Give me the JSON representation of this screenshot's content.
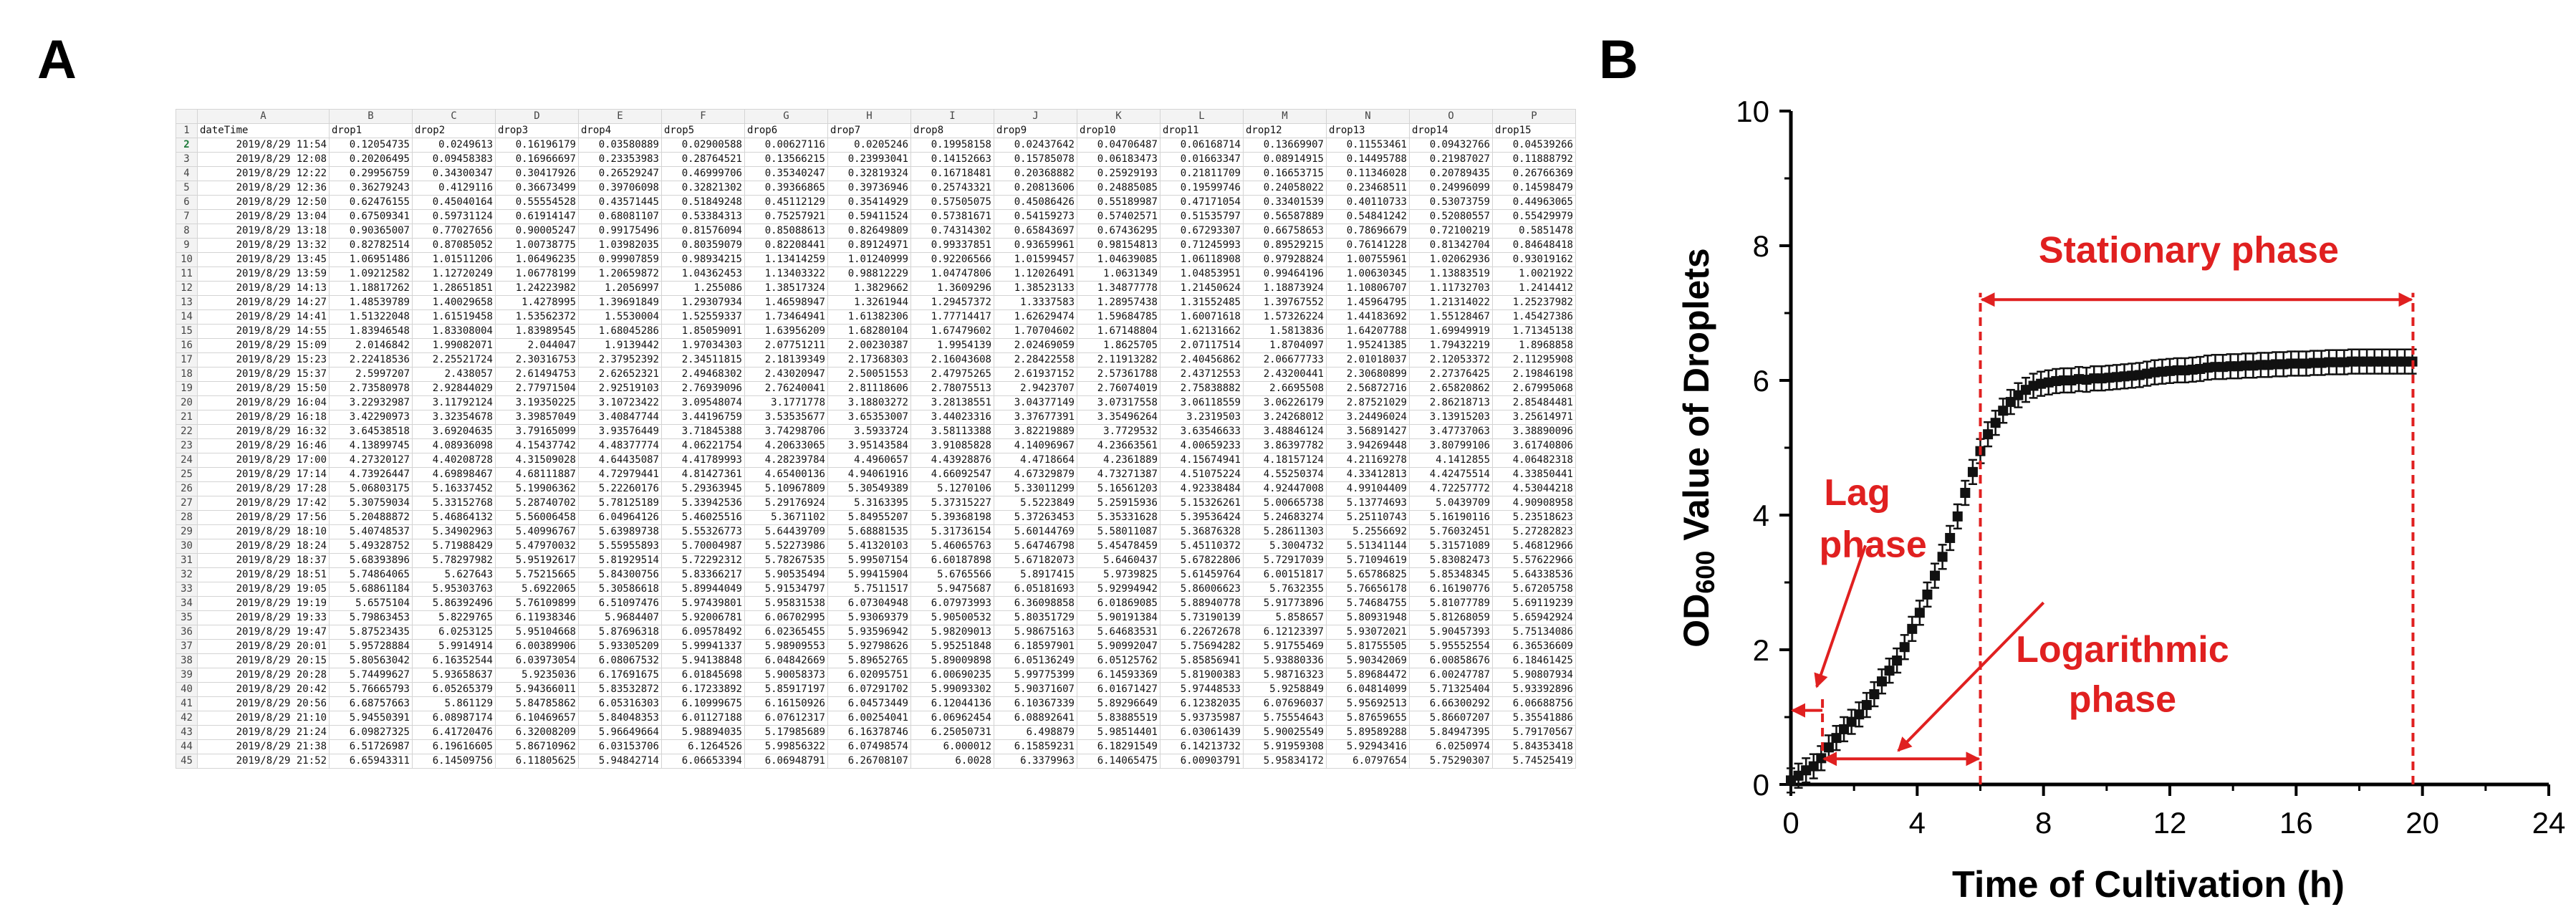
{
  "panels": {
    "a": "A",
    "b": "B"
  },
  "spreadsheet": {
    "columns": [
      "",
      "A",
      "B",
      "C",
      "D",
      "E",
      "F",
      "G",
      "H",
      "I",
      "J",
      "K",
      "L",
      "M",
      "N",
      "O",
      "P"
    ],
    "header": [
      "dateTime",
      "drop1",
      "drop2",
      "drop3",
      "drop4",
      "drop5",
      "drop6",
      "drop7",
      "drop8",
      "drop9",
      "drop10",
      "drop11",
      "drop12",
      "drop13",
      "drop14",
      "drop15"
    ],
    "rows": [
      [
        "2019/8/29 11:54",
        "0.12054735",
        "0.0249613",
        "0.16196179",
        "0.03580889",
        "0.02900588",
        "0.00627116",
        "0.0205246",
        "0.19958158",
        "0.02437642",
        "0.04706487",
        "0.06168714",
        "0.13669907",
        "0.11553461",
        "0.09432766",
        "0.04539266"
      ],
      [
        "2019/8/29 12:08",
        "0.20206495",
        "0.09458383",
        "0.16966697",
        "0.23353983",
        "0.28764521",
        "0.13566215",
        "0.23993041",
        "0.14152663",
        "0.15785078",
        "0.06183473",
        "0.01663347",
        "0.08914915",
        "0.14495788",
        "0.21987027",
        "0.11888792"
      ],
      [
        "2019/8/29 12:22",
        "0.29956759",
        "0.34300347",
        "0.30417926",
        "0.26529247",
        "0.46999706",
        "0.35340247",
        "0.32819324",
        "0.16718481",
        "0.20368882",
        "0.25929193",
        "0.21811709",
        "0.16653715",
        "0.11346028",
        "0.20789435",
        "0.26766369"
      ],
      [
        "2019/8/29 12:36",
        "0.36279243",
        "0.4129116",
        "0.36673499",
        "0.39706098",
        "0.32821302",
        "0.39366865",
        "0.39736946",
        "0.25743321",
        "0.20813606",
        "0.24885085",
        "0.19599746",
        "0.24058022",
        "0.23468511",
        "0.24996099",
        "0.14598479"
      ],
      [
        "2019/8/29 12:50",
        "0.62476155",
        "0.45040164",
        "0.55554528",
        "0.43571445",
        "0.51849248",
        "0.45112129",
        "0.35414929",
        "0.57505075",
        "0.45086426",
        "0.55189987",
        "0.47171054",
        "0.33401539",
        "0.40110733",
        "0.53073759",
        "0.44963065"
      ],
      [
        "2019/8/29 13:04",
        "0.67509341",
        "0.59731124",
        "0.61914147",
        "0.68081107",
        "0.53384313",
        "0.75257921",
        "0.59411524",
        "0.57381671",
        "0.54159273",
        "0.57402571",
        "0.51535797",
        "0.56587889",
        "0.54841242",
        "0.52080557",
        "0.55429979"
      ],
      [
        "2019/8/29 13:18",
        "0.90365007",
        "0.77027656",
        "0.90005247",
        "0.99175496",
        "0.81576094",
        "0.85088613",
        "0.82649809",
        "0.74314302",
        "0.65843697",
        "0.67436295",
        "0.67293307",
        "0.66758653",
        "0.78696679",
        "0.72100219",
        "0.5851478"
      ],
      [
        "2019/8/29 13:32",
        "0.82782514",
        "0.87085052",
        "1.00738775",
        "1.03982035",
        "0.80359079",
        "0.82208441",
        "0.89124971",
        "0.99337851",
        "0.93659961",
        "0.98154813",
        "0.71245993",
        "0.89529215",
        "0.76141228",
        "0.81342704",
        "0.84648418"
      ],
      [
        "2019/8/29 13:45",
        "1.06951486",
        "1.01511206",
        "1.06496235",
        "0.99907859",
        "0.98934215",
        "1.13414259",
        "1.01240999",
        "0.92206566",
        "1.01599457",
        "1.04639085",
        "1.06118908",
        "0.97928824",
        "1.00755961",
        "1.02062936",
        "0.93019162"
      ],
      [
        "2019/8/29 13:59",
        "1.09212582",
        "1.12720249",
        "1.06778199",
        "1.20659872",
        "1.04362453",
        "1.13403322",
        "0.98812229",
        "1.04747806",
        "1.12026491",
        "1.0631349",
        "1.04853951",
        "0.99464196",
        "1.00630345",
        "1.13883519",
        "1.0021922"
      ],
      [
        "2019/8/29 14:13",
        "1.18817262",
        "1.28651851",
        "1.24223982",
        "1.2056997",
        "1.255086",
        "1.38517324",
        "1.3829662",
        "1.3609296",
        "1.38523133",
        "1.34877778",
        "1.21450624",
        "1.18873924",
        "1.10806707",
        "1.11732703",
        "1.2414412"
      ],
      [
        "2019/8/29 14:27",
        "1.48539789",
        "1.40029658",
        "1.4278995",
        "1.39691849",
        "1.29307934",
        "1.46598947",
        "1.3261944",
        "1.29457372",
        "1.3337583",
        "1.28957438",
        "1.31552485",
        "1.39767552",
        "1.45964795",
        "1.21314022",
        "1.25237982"
      ],
      [
        "2019/8/29 14:41",
        "1.51322048",
        "1.61519458",
        "1.53562372",
        "1.5530004",
        "1.52559337",
        "1.73464941",
        "1.61382306",
        "1.77714417",
        "1.62629474",
        "1.59684785",
        "1.60071618",
        "1.57326224",
        "1.44183692",
        "1.55128467",
        "1.45427386"
      ],
      [
        "2019/8/29 14:55",
        "1.83946548",
        "1.83308004",
        "1.83989545",
        "1.68045286",
        "1.85059091",
        "1.63956209",
        "1.68280104",
        "1.67479602",
        "1.70704602",
        "1.67148804",
        "1.62131662",
        "1.5813836",
        "1.64207788",
        "1.69949919",
        "1.71345138"
      ],
      [
        "2019/8/29 15:09",
        "2.0146842",
        "1.99082071",
        "2.044047",
        "1.9139442",
        "1.97034303",
        "2.07751211",
        "2.00230387",
        "1.9954139",
        "2.02469059",
        "1.8625705",
        "2.07117514",
        "1.8704097",
        "1.95241385",
        "1.79432219",
        "1.8968858"
      ],
      [
        "2019/8/29 15:23",
        "2.22418536",
        "2.25521724",
        "2.30316753",
        "2.37952392",
        "2.34511815",
        "2.18139349",
        "2.17368303",
        "2.16043608",
        "2.28422558",
        "2.11913282",
        "2.40456862",
        "2.06677733",
        "2.01018037",
        "2.12053372",
        "2.11295908"
      ],
      [
        "2019/8/29 15:37",
        "2.5997207",
        "2.438057",
        "2.61494753",
        "2.62652321",
        "2.49468302",
        "2.43020947",
        "2.50051553",
        "2.47975265",
        "2.61937152",
        "2.57361788",
        "2.43712553",
        "2.43200441",
        "2.30680899",
        "2.27376425",
        "2.19846198"
      ],
      [
        "2019/8/29 15:50",
        "2.73580978",
        "2.92844029",
        "2.77971504",
        "2.92519103",
        "2.76939096",
        "2.76240041",
        "2.81118606",
        "2.78075513",
        "2.9423707",
        "2.76074019",
        "2.75838882",
        "2.6695508",
        "2.56872716",
        "2.65820862",
        "2.67995068"
      ],
      [
        "2019/8/29 16:04",
        "3.22932987",
        "3.11792124",
        "3.19350225",
        "3.10723422",
        "3.09548074",
        "3.1771778",
        "3.18803272",
        "3.28138551",
        "3.04377149",
        "3.07317558",
        "3.06118559",
        "3.06226179",
        "2.87521029",
        "2.86218713",
        "2.85484481"
      ],
      [
        "2019/8/29 16:18",
        "3.42290973",
        "3.32354678",
        "3.39857049",
        "3.40847744",
        "3.44196759",
        "3.53535677",
        "3.65353007",
        "3.44023316",
        "3.37677391",
        "3.35496264",
        "3.2319503",
        "3.24268012",
        "3.24496024",
        "3.13915203",
        "3.25614971"
      ],
      [
        "2019/8/29 16:32",
        "3.64538518",
        "3.69204635",
        "3.79165099",
        "3.93576449",
        "3.71845388",
        "3.74298706",
        "3.5933724",
        "3.58113388",
        "3.82219889",
        "3.7729532",
        "3.63546633",
        "3.48846124",
        "3.56891427",
        "3.47737063",
        "3.38890096"
      ],
      [
        "2019/8/29 16:46",
        "4.13899745",
        "4.08936098",
        "4.15437742",
        "4.48377774",
        "4.06221754",
        "4.20633065",
        "3.95143584",
        "3.91085828",
        "4.14096967",
        "4.23663561",
        "4.00659233",
        "3.86397782",
        "3.94269448",
        "3.80799106",
        "3.61740806"
      ],
      [
        "2019/8/29 17:00",
        "4.27320127",
        "4.40208728",
        "4.31509028",
        "4.64435087",
        "4.41789993",
        "4.28239784",
        "4.4960657",
        "4.43928876",
        "4.4718664",
        "4.2361889",
        "4.15674941",
        "4.18157124",
        "4.21169278",
        "4.1412855",
        "4.06482318"
      ],
      [
        "2019/8/29 17:14",
        "4.73926447",
        "4.69898467",
        "4.68111887",
        "4.72979441",
        "4.81427361",
        "4.65400136",
        "4.94061916",
        "4.66092547",
        "4.67329879",
        "4.73271387",
        "4.51075224",
        "4.55250374",
        "4.33412813",
        "4.42475514",
        "4.33850441"
      ],
      [
        "2019/8/29 17:28",
        "5.06803175",
        "5.16337452",
        "5.19906362",
        "5.22260176",
        "5.29363945",
        "5.10967809",
        "5.30549389",
        "5.1270106",
        "5.33011299",
        "5.16561203",
        "4.92338484",
        "4.92447008",
        "4.99104409",
        "4.72257772",
        "4.53044218"
      ],
      [
        "2019/8/29 17:42",
        "5.30759034",
        "5.33152768",
        "5.28740702",
        "5.78125189",
        "5.33942536",
        "5.29176924",
        "5.3163395",
        "5.37315227",
        "5.5223849",
        "5.25915936",
        "5.15326261",
        "5.00665738",
        "5.13774693",
        "5.0439709",
        "4.90908958"
      ],
      [
        "2019/8/29 17:56",
        "5.20488872",
        "5.46864132",
        "5.56006458",
        "6.04964126",
        "5.46025516",
        "5.3671102",
        "5.84955207",
        "5.39368198",
        "5.37263453",
        "5.35331628",
        "5.39536424",
        "5.24683274",
        "5.25110743",
        "5.16190116",
        "5.23518623"
      ],
      [
        "2019/8/29 18:10",
        "5.40748537",
        "5.34902963",
        "5.40996767",
        "5.63989738",
        "5.55326773",
        "5.64439709",
        "5.68881535",
        "5.31736154",
        "5.60144769",
        "5.58011087",
        "5.36876328",
        "5.28611303",
        "5.2556692",
        "5.76032451",
        "5.27282823"
      ],
      [
        "2019/8/29 18:24",
        "5.49328752",
        "5.71988429",
        "5.47970032",
        "5.55955893",
        "5.70004987",
        "5.52273986",
        "5.41320103",
        "5.46065763",
        "5.64746798",
        "5.45478459",
        "5.45110372",
        "5.3004732",
        "5.51341144",
        "5.31571089",
        "5.46812966"
      ],
      [
        "2019/8/29 18:37",
        "5.68393896",
        "5.78297982",
        "5.95192617",
        "5.81929514",
        "5.72292312",
        "5.78267535",
        "5.99507154",
        "6.60187898",
        "5.67182073",
        "5.6460437",
        "5.67822806",
        "5.72917039",
        "5.71094619",
        "5.83082473",
        "5.57622966"
      ],
      [
        "2019/8/29 18:51",
        "5.74864065",
        "5.627643",
        "5.75215665",
        "5.84300756",
        "5.83366217",
        "5.90535494",
        "5.99415904",
        "5.6765566",
        "5.8917415",
        "5.9739825",
        "5.61459764",
        "6.00151817",
        "5.65786825",
        "5.85348345",
        "5.64338536"
      ],
      [
        "2019/8/29 19:05",
        "5.68861184",
        "5.95303763",
        "5.6922065",
        "5.30586618",
        "5.89944049",
        "5.91534797",
        "5.7511517",
        "5.9475687",
        "6.05181693",
        "5.92994942",
        "5.86006623",
        "5.7632355",
        "5.76656178",
        "6.16190776",
        "5.67205758"
      ],
      [
        "2019/8/29 19:19",
        "5.6575104",
        "5.86392496",
        "5.76109899",
        "6.51097476",
        "5.97439801",
        "5.95831538",
        "6.07304948",
        "6.07973993",
        "6.36098858",
        "6.01869085",
        "5.88940778",
        "5.91773896",
        "5.74684755",
        "5.81077789",
        "5.69119239"
      ],
      [
        "2019/8/29 19:33",
        "5.79863453",
        "5.8229765",
        "6.11938346",
        "5.9684407",
        "5.92006781",
        "6.06702995",
        "5.93069379",
        "5.90500532",
        "5.80351729",
        "5.90191384",
        "5.73190139",
        "5.858657",
        "5.80931948",
        "5.81268059",
        "5.65942924"
      ],
      [
        "2019/8/29 19:47",
        "5.87523435",
        "6.0253125",
        "5.95104668",
        "5.87696318",
        "6.09578492",
        "6.02365455",
        "5.93596942",
        "5.98209013",
        "5.98675163",
        "5.64683531",
        "6.22672678",
        "6.12123397",
        "5.93072021",
        "5.90457393",
        "5.75134086"
      ],
      [
        "2019/8/29 20:01",
        "5.95728884",
        "5.9914914",
        "6.00389906",
        "5.93305209",
        "5.99941337",
        "5.98909553",
        "5.92798626",
        "5.95251848",
        "6.18597901",
        "5.90992047",
        "5.75694282",
        "5.91755469",
        "5.81755505",
        "5.95552554",
        "6.36536609"
      ],
      [
        "2019/8/29 20:15",
        "5.80563042",
        "6.16352544",
        "6.03973054",
        "6.08067532",
        "5.94138848",
        "6.04842669",
        "5.89652765",
        "5.89009898",
        "6.05136249",
        "6.05125762",
        "5.85856941",
        "5.93880336",
        "5.90342069",
        "6.00858676",
        "6.18461425"
      ],
      [
        "2019/8/29 20:28",
        "5.74499627",
        "5.93658637",
        "5.9235036",
        "6.17691675",
        "6.01845698",
        "5.90058373",
        "6.02095751",
        "6.00690235",
        "5.99775399",
        "6.14593369",
        "5.81900383",
        "5.98716323",
        "5.89684472",
        "6.00247787",
        "5.90807934"
      ],
      [
        "2019/8/29 20:42",
        "5.76665793",
        "6.05265379",
        "5.94366011",
        "5.83532872",
        "6.17233892",
        "5.85917197",
        "6.07291702",
        "5.99093302",
        "5.90371607",
        "6.01671427",
        "5.97448533",
        "5.9258849",
        "6.04814099",
        "5.71325404",
        "5.93392896"
      ],
      [
        "2019/8/29 20:56",
        "6.68757663",
        "5.861129",
        "5.84785862",
        "6.05316303",
        "6.10999675",
        "6.16150926",
        "6.04573449",
        "6.12044136",
        "6.10367339",
        "5.89296649",
        "6.12382035",
        "6.07696037",
        "5.95692513",
        "6.66300292",
        "6.06688756"
      ],
      [
        "2019/8/29 21:10",
        "5.94550391",
        "6.08987174",
        "6.10469657",
        "5.84048353",
        "6.01127188",
        "6.07612317",
        "6.00254041",
        "6.06962454",
        "6.08892641",
        "5.83885519",
        "5.93735987",
        "5.75554643",
        "5.87659655",
        "5.86607207",
        "5.35541886"
      ],
      [
        "2019/8/29 21:24",
        "6.09827325",
        "6.41720476",
        "6.32008209",
        "5.96649664",
        "5.98894035",
        "5.17985689",
        "6.16378746",
        "6.25050731",
        "6.498879",
        "5.98514401",
        "6.03061439",
        "5.90025549",
        "5.89589288",
        "5.84947395",
        "5.79170567"
      ],
      [
        "2019/8/29 21:38",
        "6.51726987",
        "6.19616605",
        "5.86710962",
        "6.03153706",
        "6.1264526",
        "5.99856322",
        "6.07498574",
        "6.000012",
        "6.15859231",
        "6.18291549",
        "6.14213732",
        "5.91959308",
        "5.92943416",
        "6.0250974",
        "5.84353418"
      ],
      [
        "2019/8/29 21:52",
        "6.65943311",
        "6.14509756",
        "6.11805625",
        "5.94842714",
        "6.06653394",
        "6.06948791",
        "6.26708107",
        "6.0028",
        "6.3379963",
        "6.14065475",
        "6.00903791",
        "5.95834172",
        "6.0797654",
        "5.75290307",
        "5.74525419"
      ]
    ]
  },
  "chart_data": {
    "type": "scatter",
    "xlabel": "Time of Cultivation (h)",
    "ylabel_prefix": "OD",
    "ylabel_sub": "600",
    "ylabel_suffix": " Value of Droplets",
    "xlim": [
      0,
      24
    ],
    "ylim": [
      0,
      10
    ],
    "xticks": [
      "0",
      "4",
      "8",
      "12",
      "16",
      "20",
      "24"
    ],
    "yticks": [
      "0",
      "2",
      "4",
      "6",
      "8",
      "10"
    ],
    "grid": false,
    "x": [
      0.0,
      0.24,
      0.48,
      0.72,
      0.96,
      1.2,
      1.44,
      1.68,
      1.92,
      2.16,
      2.4,
      2.64,
      2.88,
      3.12,
      3.36,
      3.6,
      3.84,
      4.08,
      4.32,
      4.56,
      4.8,
      5.04,
      5.28,
      5.52,
      5.76,
      6.0,
      6.24,
      6.48,
      6.72,
      6.96,
      7.2,
      7.44,
      7.68,
      7.92,
      8.16,
      8.4,
      8.64,
      8.88,
      9.12,
      9.36,
      9.6,
      9.84,
      10.08,
      10.32,
      10.56,
      10.8,
      11.04,
      11.28,
      11.52,
      11.76,
      12.0,
      12.24,
      12.48,
      12.72,
      12.96,
      13.2,
      13.44,
      13.68,
      13.92,
      14.16,
      14.4,
      14.64,
      14.88,
      15.12,
      15.36,
      15.6,
      15.84,
      16.08,
      16.32,
      16.56,
      16.8,
      17.04,
      17.28,
      17.52,
      17.76,
      18.0,
      18.24,
      18.48,
      18.72,
      18.96,
      19.2,
      19.44,
      19.68
    ],
    "y": [
      0.06,
      0.13,
      0.21,
      0.27,
      0.39,
      0.55,
      0.69,
      0.82,
      0.93,
      1.04,
      1.18,
      1.34,
      1.53,
      1.69,
      1.84,
      2.04,
      2.31,
      2.55,
      2.82,
      3.1,
      3.38,
      3.66,
      3.98,
      4.33,
      4.64,
      4.95,
      5.2,
      5.37,
      5.55,
      5.68,
      5.78,
      5.86,
      5.92,
      5.95,
      5.97,
      5.99,
      6.0,
      6.0,
      6.02,
      6.01,
      6.03,
      6.03,
      6.04,
      6.05,
      6.06,
      6.07,
      6.08,
      6.1,
      6.12,
      6.13,
      6.14,
      6.15,
      6.15,
      6.16,
      6.17,
      6.19,
      6.2,
      6.2,
      6.21,
      6.21,
      6.22,
      6.22,
      6.23,
      6.23,
      6.24,
      6.24,
      6.25,
      6.25,
      6.25,
      6.26,
      6.26,
      6.27,
      6.27,
      6.27,
      6.28,
      6.28,
      6.28,
      6.28,
      6.28,
      6.28,
      6.28,
      6.28,
      6.28
    ],
    "error": 0.18,
    "marker_color": "#111111",
    "annotation_color": "#e02020",
    "phase_boundaries_x": [
      1.0,
      6.0,
      19.7
    ],
    "annotations": {
      "lag": [
        "Lag",
        "phase"
      ],
      "logarithmic": [
        "Logarithmic",
        "phase"
      ],
      "stationary": [
        "Stationary phase"
      ]
    }
  }
}
